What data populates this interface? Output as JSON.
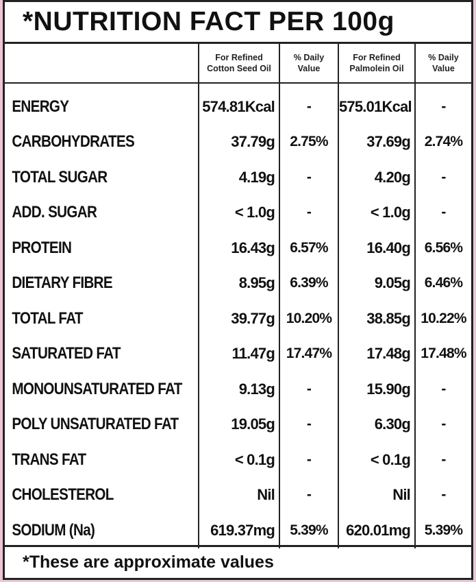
{
  "title": "*NUTRITION FACT PER 100g",
  "columns": {
    "col1_line1": "For Refined",
    "col1_line2": "Cotton Seed Oil",
    "col2_line1": "% Daily",
    "col2_line2": "Value",
    "col3_line1": "For Refined",
    "col3_line2": "Palmolein Oil",
    "col4_line1": "% Daily",
    "col4_line2": "Value"
  },
  "rows": [
    {
      "name": "ENERGY",
      "cotton": "574.81Kcal",
      "cotton_dv": "-",
      "palm": "575.01Kcal",
      "palm_dv": "-"
    },
    {
      "name": "CARBOHYDRATES",
      "cotton": "37.79g",
      "cotton_dv": "2.75%",
      "palm": "37.69g",
      "palm_dv": "2.74%"
    },
    {
      "name": "TOTAL SUGAR",
      "cotton": "4.19g",
      "cotton_dv": "-",
      "palm": "4.20g",
      "palm_dv": "-"
    },
    {
      "name": "ADD. SUGAR",
      "cotton": "< 1.0g",
      "cotton_dv": "-",
      "palm": "< 1.0g",
      "palm_dv": "-"
    },
    {
      "name": "PROTEIN",
      "cotton": "16.43g",
      "cotton_dv": "6.57%",
      "palm": "16.40g",
      "palm_dv": "6.56%"
    },
    {
      "name": "DIETARY FIBRE",
      "cotton": "8.95g",
      "cotton_dv": "6.39%",
      "palm": "9.05g",
      "palm_dv": "6.46%"
    },
    {
      "name": "TOTAL FAT",
      "cotton": "39.77g",
      "cotton_dv": "10.20%",
      "palm": "38.85g",
      "palm_dv": "10.22%"
    },
    {
      "name": "SATURATED FAT",
      "cotton": "11.47g",
      "cotton_dv": "17.47%",
      "palm": "17.48g",
      "palm_dv": "17.48%"
    },
    {
      "name": "MONOUNSATURATED FAT",
      "cotton": "9.13g",
      "cotton_dv": "-",
      "palm": "15.90g",
      "palm_dv": "-"
    },
    {
      "name": "POLY UNSATURATED FAT",
      "cotton": "19.05g",
      "cotton_dv": "-",
      "palm": "6.30g",
      "palm_dv": "-"
    },
    {
      "name": "TRANS FAT",
      "cotton": "< 0.1g",
      "cotton_dv": "-",
      "palm": "< 0.1g",
      "palm_dv": "-"
    },
    {
      "name": "CHOLESTEROL",
      "cotton": "Nil",
      "cotton_dv": "-",
      "palm": "Nil",
      "palm_dv": "-"
    },
    {
      "name": "SODIUM (Na)",
      "cotton": "619.37mg",
      "cotton_dv": "5.39%",
      "palm": "620.01mg",
      "palm_dv": "5.39%"
    }
  ],
  "footer": "*These are approximate values",
  "colors": {
    "background": "#e9c7d6",
    "panel": "#ffffff",
    "border": "#222222"
  }
}
